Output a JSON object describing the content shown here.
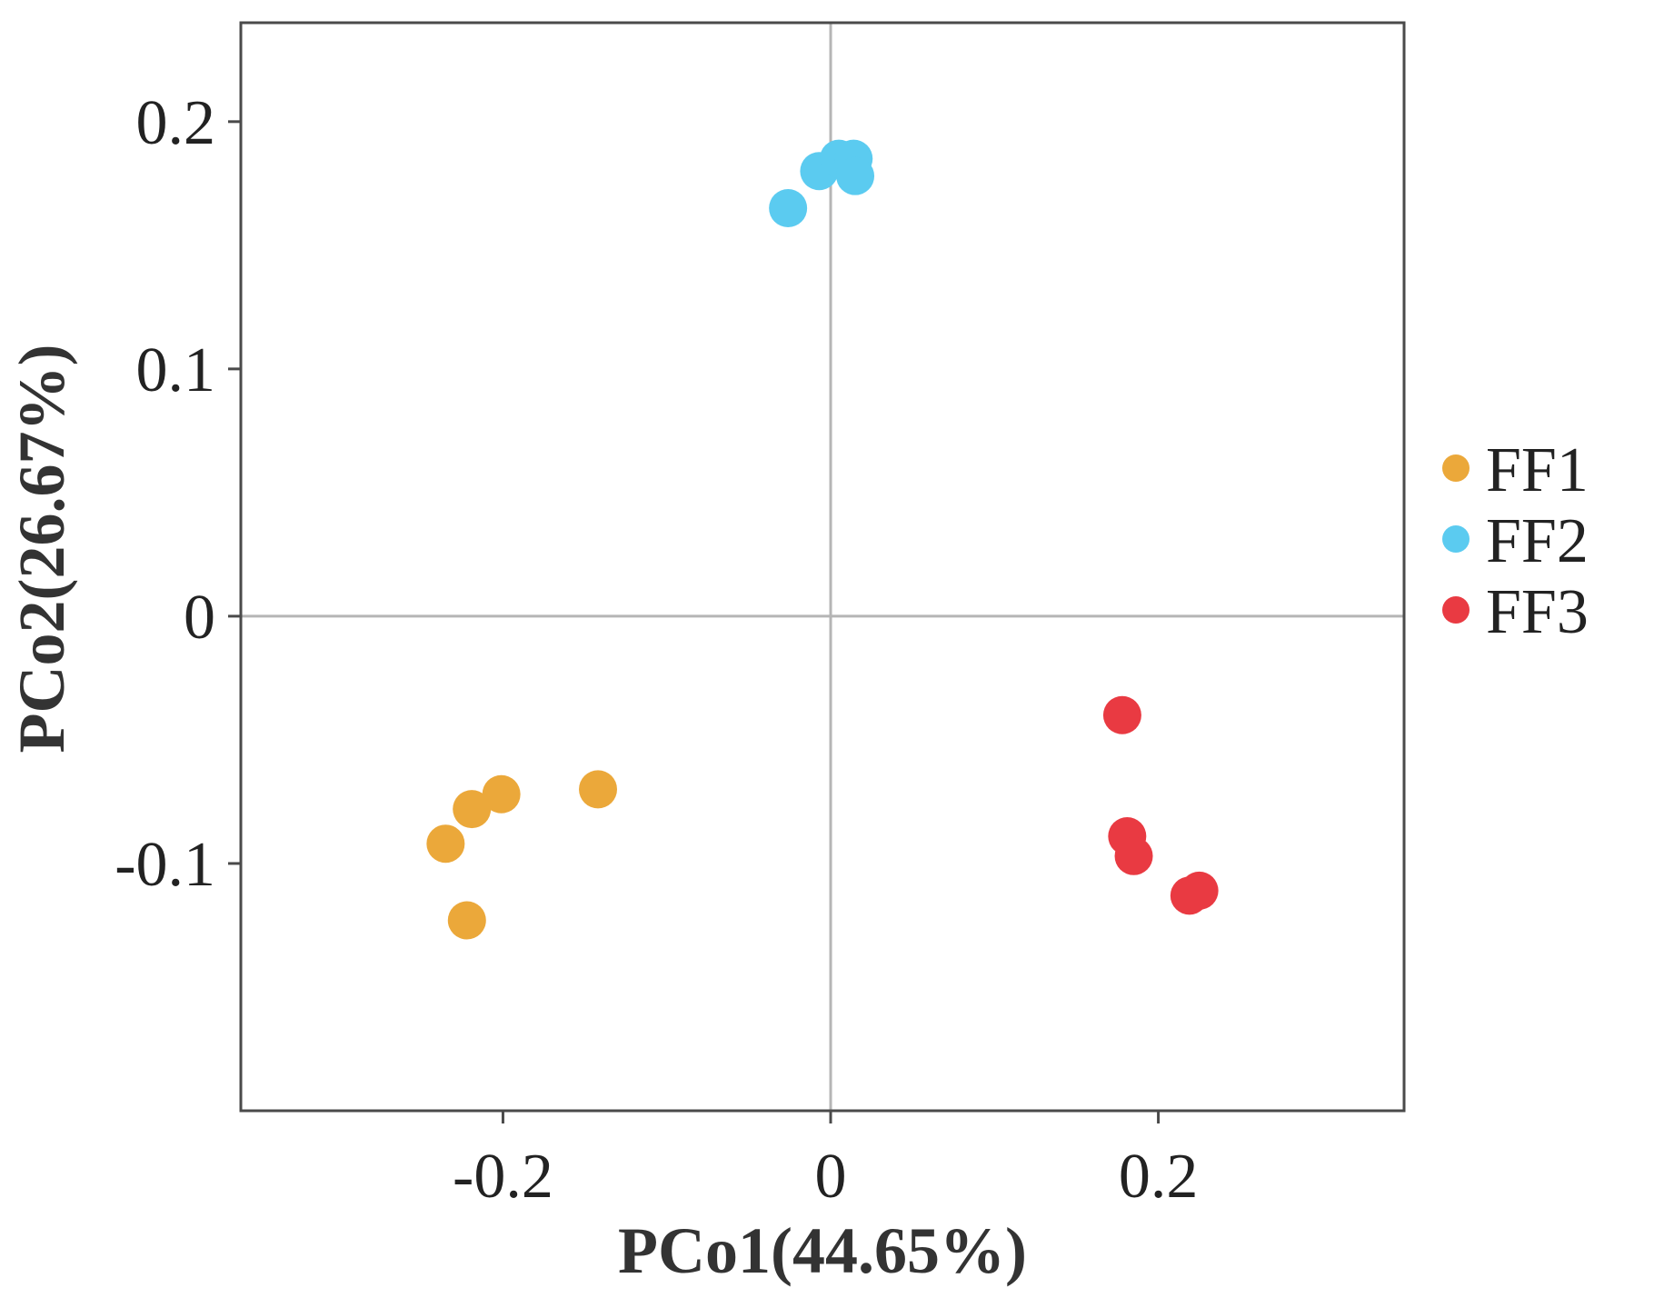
{
  "chart_data": {
    "type": "scatter",
    "xlabel": "PCo1(44.65%)",
    "ylabel": "PCo2(26.67%)",
    "xlim": [
      -0.36,
      0.35
    ],
    "ylim": [
      -0.2,
      0.24
    ],
    "xticks": [
      {
        "value": -0.2,
        "label": "-0.2"
      },
      {
        "value": 0,
        "label": "0"
      },
      {
        "value": 0.2,
        "label": "0.2"
      }
    ],
    "yticks": [
      {
        "value": 0.2,
        "label": "0.2"
      },
      {
        "value": 0.1,
        "label": "0.1"
      },
      {
        "value": 0,
        "label": "0"
      },
      {
        "value": -0.1,
        "label": "-0.1"
      }
    ],
    "reference_lines": {
      "x": 0,
      "y": 0
    },
    "grid": false,
    "legend_position": "right",
    "series": [
      {
        "name": "FF1",
        "color": "#EBA83A",
        "points": [
          {
            "x": -0.142,
            "y": -0.07
          },
          {
            "x": -0.201,
            "y": -0.072
          },
          {
            "x": -0.219,
            "y": -0.078
          },
          {
            "x": -0.235,
            "y": -0.092
          },
          {
            "x": -0.222,
            "y": -0.123
          }
        ]
      },
      {
        "name": "FF2",
        "color": "#5BCBF0",
        "points": [
          {
            "x": -0.026,
            "y": 0.165
          },
          {
            "x": -0.007,
            "y": 0.18
          },
          {
            "x": 0.005,
            "y": 0.185
          },
          {
            "x": 0.014,
            "y": 0.185
          },
          {
            "x": 0.015,
            "y": 0.178
          }
        ]
      },
      {
        "name": "FF3",
        "color": "#E93A42",
        "points": [
          {
            "x": 0.178,
            "y": -0.04
          },
          {
            "x": 0.181,
            "y": -0.089
          },
          {
            "x": 0.185,
            "y": -0.097
          },
          {
            "x": 0.219,
            "y": -0.113
          },
          {
            "x": 0.225,
            "y": -0.111
          }
        ]
      }
    ]
  }
}
